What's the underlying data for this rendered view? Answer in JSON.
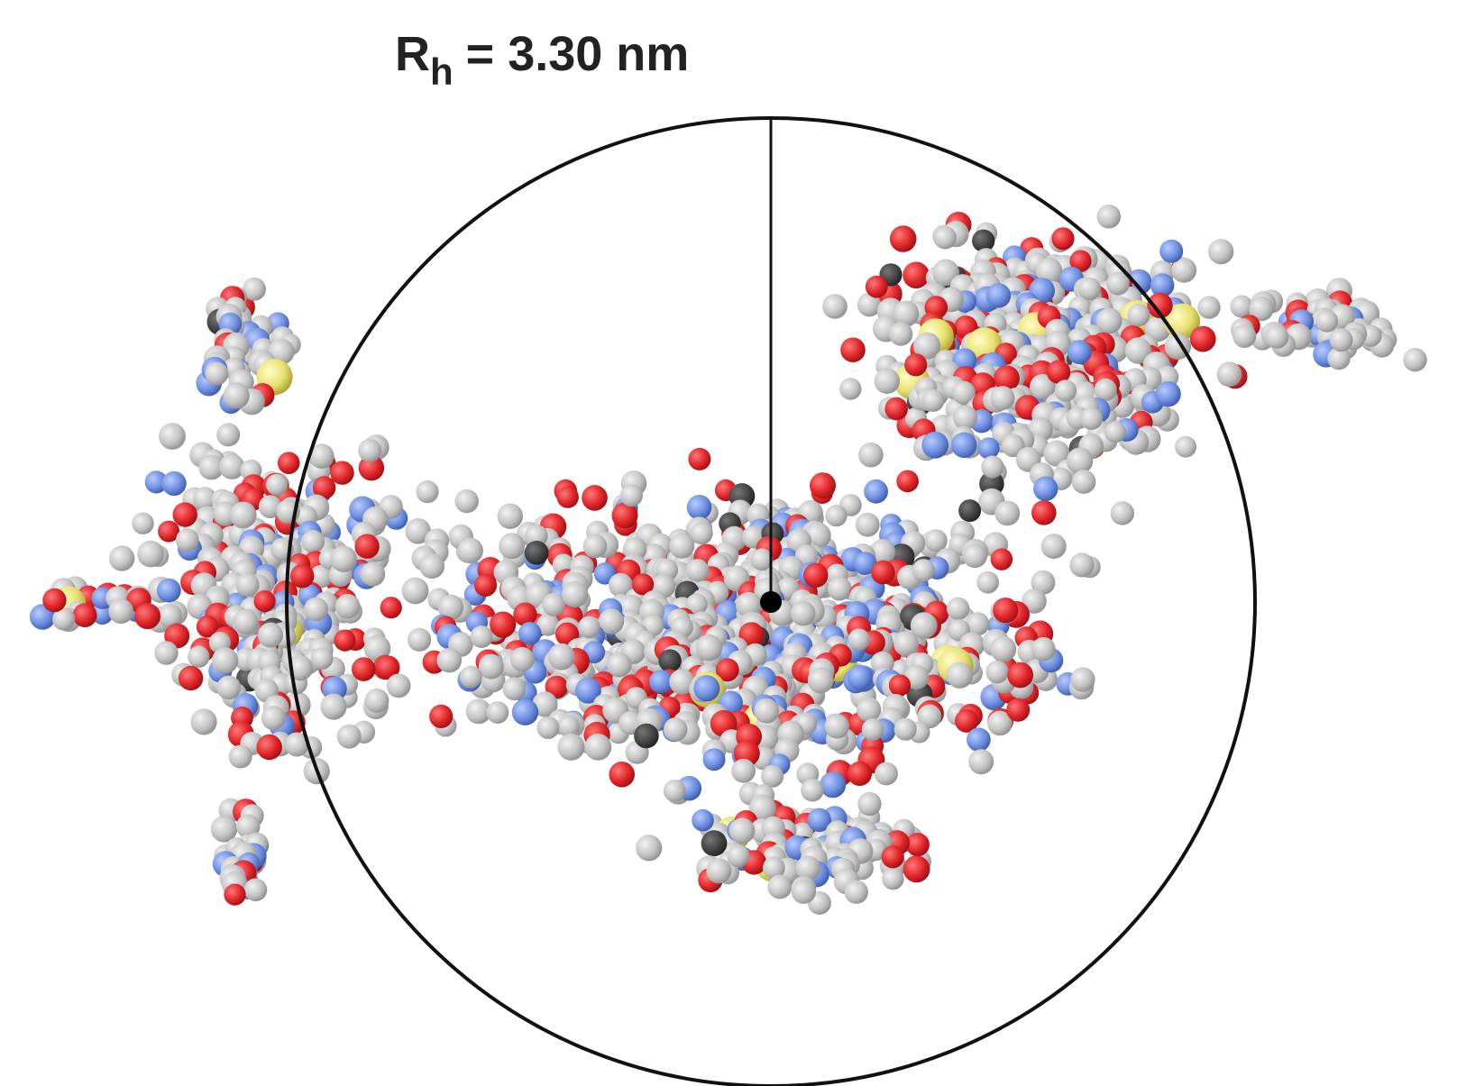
{
  "label": {
    "symbol": "R",
    "subscript": "h",
    "rest": "= 3.30 nm"
  }
}
